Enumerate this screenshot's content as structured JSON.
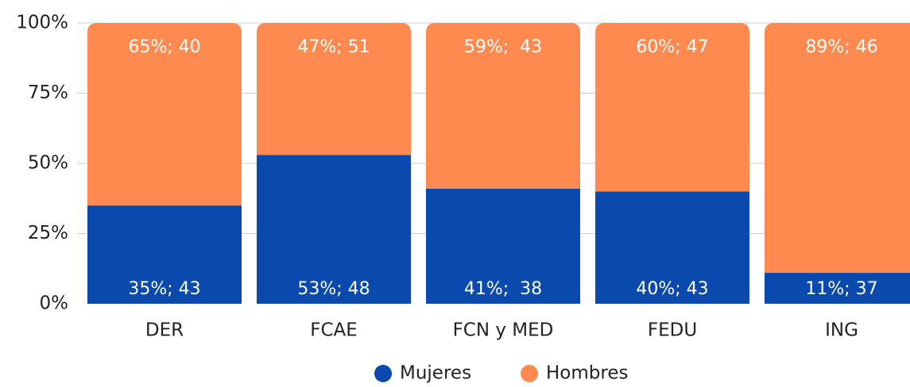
{
  "chart_data": {
    "type": "stacked_bar",
    "categories": [
      "DER",
      "FCAE",
      "FCN y MED",
      "FEDU",
      "ING"
    ],
    "series": [
      {
        "name": "Mujeres",
        "color": "#0a49ad",
        "values": [
          35,
          53,
          41,
          40,
          11
        ],
        "value_labels": [
          "35%; 43",
          "53%; 48",
          "41%;  38",
          "40%; 43",
          "11%; 37"
        ]
      },
      {
        "name": "Hombres",
        "color": "#ff8a50",
        "values": [
          65,
          47,
          59,
          60,
          89
        ],
        "value_labels": [
          "65%; 40",
          "47%; 51",
          "59%;  43",
          "60%; 47",
          "89%; 46"
        ]
      }
    ],
    "ylim": [
      0,
      100
    ],
    "yticks": [
      {
        "value": 0,
        "label": "0%"
      },
      {
        "value": 25,
        "label": "25%"
      },
      {
        "value": 50,
        "label": "50%"
      },
      {
        "value": 75,
        "label": "75%"
      },
      {
        "value": 100,
        "label": "100%"
      }
    ],
    "grid": true,
    "legend": "bottom"
  }
}
